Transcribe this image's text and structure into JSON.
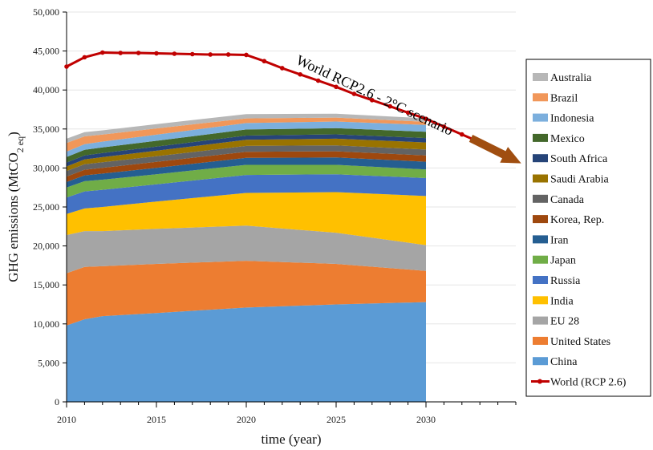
{
  "chart_data": {
    "type": "area",
    "stacked": true,
    "title": "",
    "xlabel": "time (year)",
    "ylabel_main": "GHG emissions (MtCO",
    "ylabel_sub": "2 eq",
    "ylabel_close": ")",
    "xlim": [
      2010,
      2035
    ],
    "ylim": [
      0,
      50000
    ],
    "grid": "horizontal",
    "legend_position": "right",
    "x_ticks": [
      2010,
      2015,
      2020,
      2025,
      2030
    ],
    "y_ticks": [
      0,
      5000,
      10000,
      15000,
      20000,
      25000,
      30000,
      35000,
      40000,
      45000,
      50000
    ],
    "y_tick_labels": [
      "0",
      "5,000",
      "10,000",
      "15,000",
      "20,000",
      "25,000",
      "30,000",
      "35,000",
      "40,000",
      "45,000",
      "50,000"
    ],
    "x": [
      2010,
      2011,
      2012,
      2015,
      2020,
      2025,
      2030
    ],
    "series": [
      {
        "name": "China",
        "color": "#5b9bd5",
        "values": [
          9800,
          10600,
          11000,
          11400,
          12100,
          12500,
          12800
        ]
      },
      {
        "name": "United States",
        "color": "#ed7d31",
        "values": [
          6700,
          6700,
          6400,
          6300,
          6000,
          5200,
          4000
        ]
      },
      {
        "name": "EU 28",
        "color": "#a5a5a5",
        "values": [
          4900,
          4600,
          4500,
          4500,
          4500,
          4000,
          3300
        ]
      },
      {
        "name": "India",
        "color": "#ffc000",
        "values": [
          2700,
          2900,
          3100,
          3500,
          4200,
          5200,
          6300
        ]
      },
      {
        "name": "Russia",
        "color": "#4472c4",
        "values": [
          2100,
          2200,
          2200,
          2200,
          2300,
          2300,
          2300
        ]
      },
      {
        "name": "Japan",
        "color": "#70ad47",
        "values": [
          1300,
          1300,
          1300,
          1300,
          1300,
          1200,
          1100
        ]
      },
      {
        "name": "Iran",
        "color": "#255e91",
        "values": [
          700,
          750,
          780,
          820,
          900,
          950,
          1000
        ]
      },
      {
        "name": "Korea, Rep.",
        "color": "#9e480e",
        "values": [
          700,
          720,
          740,
          760,
          780,
          790,
          800
        ]
      },
      {
        "name": "Canada",
        "color": "#636363",
        "values": [
          700,
          710,
          720,
          730,
          750,
          760,
          770
        ]
      },
      {
        "name": "Saudi Arabia",
        "color": "#997300",
        "values": [
          600,
          620,
          650,
          700,
          780,
          850,
          900
        ]
      },
      {
        "name": "South Africa",
        "color": "#264478",
        "values": [
          500,
          510,
          520,
          530,
          550,
          560,
          570
        ]
      },
      {
        "name": "Mexico",
        "color": "#43682b",
        "values": [
          700,
          720,
          730,
          750,
          780,
          790,
          800
        ]
      },
      {
        "name": "Indonesia",
        "color": "#7cafdd",
        "values": [
          700,
          720,
          740,
          780,
          820,
          860,
          880
        ]
      },
      {
        "name": "Brazil",
        "color": "#f1975a",
        "values": [
          1100,
          1000,
          900,
          800,
          600,
          500,
          400
        ]
      },
      {
        "name": "Australia",
        "color": "#b7b7b7",
        "values": [
          550,
          550,
          550,
          550,
          550,
          500,
          450
        ]
      }
    ],
    "world": {
      "name": "World (RCP 2.6)",
      "color": "#c00000",
      "x": [
        2010,
        2011,
        2012,
        2013,
        2014,
        2015,
        2016,
        2017,
        2018,
        2019,
        2020,
        2021,
        2022,
        2023,
        2024,
        2025,
        2026,
        2027,
        2028,
        2029,
        2030,
        2031,
        2032,
        2033
      ],
      "values": [
        43000,
        44200,
        44800,
        44750,
        44750,
        44700,
        44650,
        44600,
        44550,
        44550,
        44500,
        43700,
        42800,
        42000,
        41200,
        40400,
        39500,
        38700,
        37900,
        37100,
        36300,
        35300,
        34300,
        33300
      ]
    },
    "annotation": {
      "text": "World RCP2.6 - 2°C scenario",
      "arrow_color": "#a04e10",
      "arrow_from": [
        2032.5,
        33800
      ],
      "arrow_to": [
        2035.3,
        30600
      ]
    }
  }
}
